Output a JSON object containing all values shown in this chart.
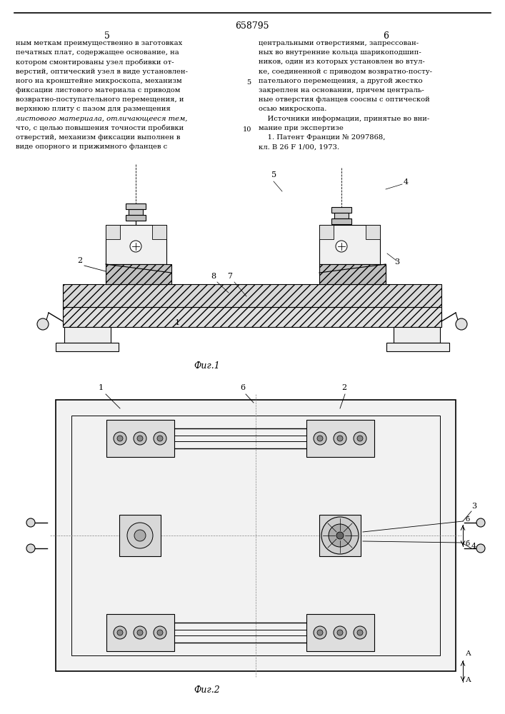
{
  "patent_number": "658795",
  "page_left": "5",
  "page_right": "6",
  "text_left": [
    "ным меткам преимущественно в заготовках",
    "печатных плат, содержащее основание, на",
    "котором смонтированы узел пробивки от-",
    "верстий, оптический узел в виде установлен-",
    "ного на кронштейне микроскопа, механизм",
    "фиксации листового материала с приводом",
    "возвратно-поступательного перемещения, и",
    "верхнюю плиту с пазом для размещения",
    "листового материала, отличающееся тем,",
    "что, с целью повышения точности пробивки",
    "отверстий, механизм фиксации выполнен в",
    "виде опорного и прижимного фланцев с"
  ],
  "text_right": [
    "центральными отверстиями, запрессован-",
    "ных во внутренние кольца шарикоподшип-",
    "ников, один из которых установлен во втул-",
    "ке, соединенной с приводом возвратно-посту-",
    "пательного перемещения, а другой жестко",
    "закреплен на основании, причем централь-",
    "ные отверстия фланцев соосны с оптической",
    "осью микроскопа.",
    "    Источники информации, принятые во вни-",
    "мание при экспертизе",
    "    1. Патент Франции № 2097868,",
    "кл. B 26 F 1/00, 1973."
  ],
  "line_number_5": "5",
  "line_number_10": "10",
  "fig1_caption": "Фиг.1",
  "fig2_caption": "Фиг.2",
  "bg_color": "#ffffff",
  "text_color": "#000000",
  "line_color": "#000000"
}
